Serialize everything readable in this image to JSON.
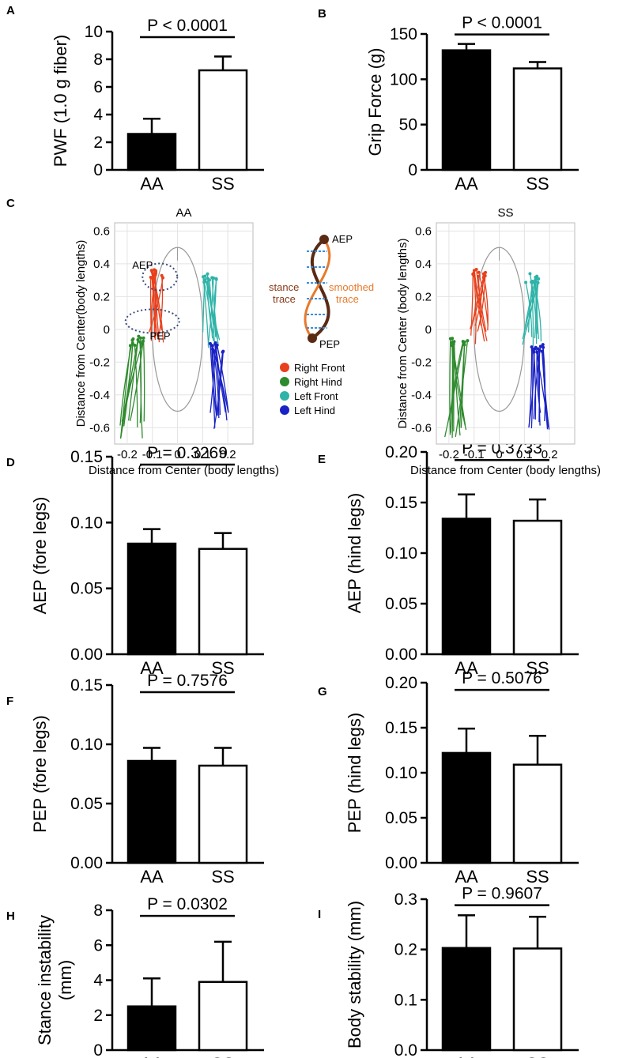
{
  "chart_data": [
    {
      "panel": "A",
      "type": "bar",
      "ylabel": "PWF (1.0 g fiber)",
      "categories": [
        "AA",
        "SS"
      ],
      "values": [
        2.6,
        7.2
      ],
      "errors": [
        1.1,
        1.0
      ],
      "ylim": [
        0,
        10
      ],
      "yticks": [
        "0",
        "2",
        "4",
        "6",
        "8",
        "10"
      ],
      "pvalue": "P < 0.0001"
    },
    {
      "panel": "B",
      "type": "bar",
      "ylabel": "Grip Force (g)",
      "categories": [
        "AA",
        "SS"
      ],
      "values": [
        132,
        112
      ],
      "errors": [
        7,
        7
      ],
      "ylim": [
        0,
        150
      ],
      "yticks": [
        "0",
        "50",
        "100",
        "150"
      ],
      "pvalue": "P < 0.0001"
    },
    {
      "panel": "C",
      "type": "scatter",
      "plots": [
        {
          "title": "AA",
          "xlabel": "Distance from Center (body lengths)",
          "ylabel": "Distance from Center(body lengths)",
          "xticks": [
            "-0.2",
            "-0.1",
            "0",
            "0.1",
            "0.2"
          ],
          "yticks": [
            "0.6",
            "0.4",
            "0.2",
            "0",
            "-0.2",
            "-0.4",
            "-0.6"
          ],
          "annotations": [
            "AEP",
            "PEP"
          ]
        },
        {
          "title": "SS",
          "xlabel": "Distance from Center (body lengths)",
          "ylabel": "Distance from Center (body lengths)",
          "xticks": [
            "-0.2",
            "-0.1",
            "0",
            "0.1",
            "0.2"
          ],
          "yticks": [
            "0.6",
            "0.4",
            "0.2",
            "0",
            "-0.2",
            "-0.4",
            "-0.6"
          ]
        }
      ],
      "inset": {
        "top_label": "AEP",
        "bottom_label": "PEP",
        "left_label": [
          "stance",
          "trace"
        ],
        "right_label": [
          "smoothed",
          "trace"
        ]
      },
      "legend": [
        {
          "label": "Right Front",
          "color": "#e8401c"
        },
        {
          "label": "Right Hind",
          "color": "#2e8a2e"
        },
        {
          "label": "Left Front",
          "color": "#2fb3a8"
        },
        {
          "label": "Left Hind",
          "color": "#1a22c4"
        }
      ]
    },
    {
      "panel": "D",
      "type": "bar",
      "ylabel": "AEP (fore legs)",
      "categories": [
        "AA",
        "SS"
      ],
      "values": [
        0.084,
        0.08
      ],
      "errors": [
        0.011,
        0.012
      ],
      "ylim": [
        0,
        0.15
      ],
      "yticks": [
        "0.00",
        "0.05",
        "0.10",
        "0.15"
      ],
      "pvalue": "P = 0.3269"
    },
    {
      "panel": "E",
      "type": "bar",
      "ylabel": "AEP (hind legs)",
      "categories": [
        "AA",
        "SS"
      ],
      "values": [
        0.134,
        0.132
      ],
      "errors": [
        0.024,
        0.021
      ],
      "ylim": [
        0,
        0.2
      ],
      "yticks": [
        "0.00",
        "0.05",
        "0.10",
        "0.15",
        "0.20"
      ],
      "pvalue": "P = 0.3733"
    },
    {
      "panel": "F",
      "type": "bar",
      "ylabel": "PEP (fore legs)",
      "categories": [
        "AA",
        "SS"
      ],
      "values": [
        0.086,
        0.082
      ],
      "errors": [
        0.011,
        0.015
      ],
      "ylim": [
        0,
        0.15
      ],
      "yticks": [
        "0.00",
        "0.05",
        "0.10",
        "0.15"
      ],
      "pvalue": "P = 0.7576"
    },
    {
      "panel": "G",
      "type": "bar",
      "ylabel": "PEP (hind legs)",
      "categories": [
        "AA",
        "SS"
      ],
      "values": [
        0.122,
        0.109
      ],
      "errors": [
        0.027,
        0.032
      ],
      "ylim": [
        0,
        0.2
      ],
      "yticks": [
        "0.00",
        "0.05",
        "0.10",
        "0.15",
        "0.20"
      ],
      "pvalue": "P = 0.5076"
    },
    {
      "panel": "H",
      "type": "bar",
      "ylabel": [
        "Stance instability",
        "(mm)"
      ],
      "categories": [
        "AA",
        "SS"
      ],
      "values": [
        2.5,
        3.9
      ],
      "errors": [
        1.6,
        2.3
      ],
      "ylim": [
        0,
        8
      ],
      "yticks": [
        "0",
        "2",
        "4",
        "6",
        "8"
      ],
      "pvalue": "P = 0.0302"
    },
    {
      "panel": "I",
      "type": "bar",
      "ylabel": "Body stability (mm)",
      "categories": [
        "AA",
        "SS"
      ],
      "values": [
        0.203,
        0.202
      ],
      "errors": [
        0.065,
        0.063
      ],
      "ylim": [
        0,
        0.3
      ],
      "yticks": [
        "0.0",
        "0.1",
        "0.2",
        "0.3"
      ],
      "pvalue": "P = 0.9607"
    }
  ]
}
